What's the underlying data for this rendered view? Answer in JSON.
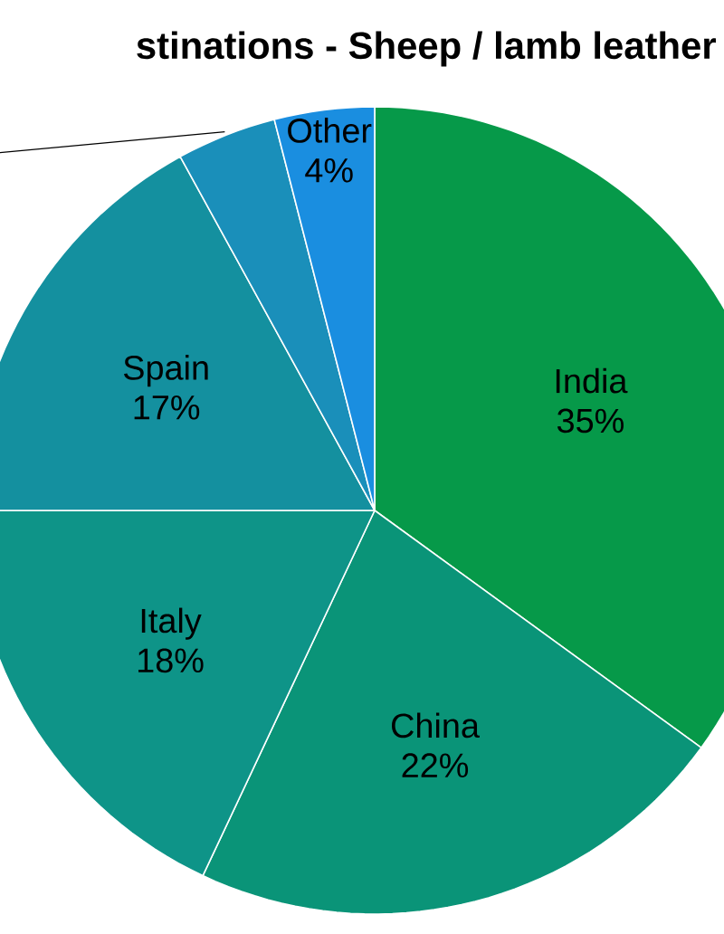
{
  "chart_data": {
    "type": "pie",
    "title": "stinations - Sheep / lamb leather",
    "categories": [
      "India",
      "China",
      "Italy",
      "Spain",
      null,
      "Other"
    ],
    "values": [
      35,
      22,
      18,
      17,
      4,
      4
    ],
    "value_labels": [
      "35%",
      "22%",
      "18%",
      "17%",
      null,
      "4%"
    ],
    "colors": [
      "#069949",
      "#0a9478",
      "#0e9488",
      "#14909f",
      "#1a8fba",
      "#1a8ee0"
    ]
  }
}
